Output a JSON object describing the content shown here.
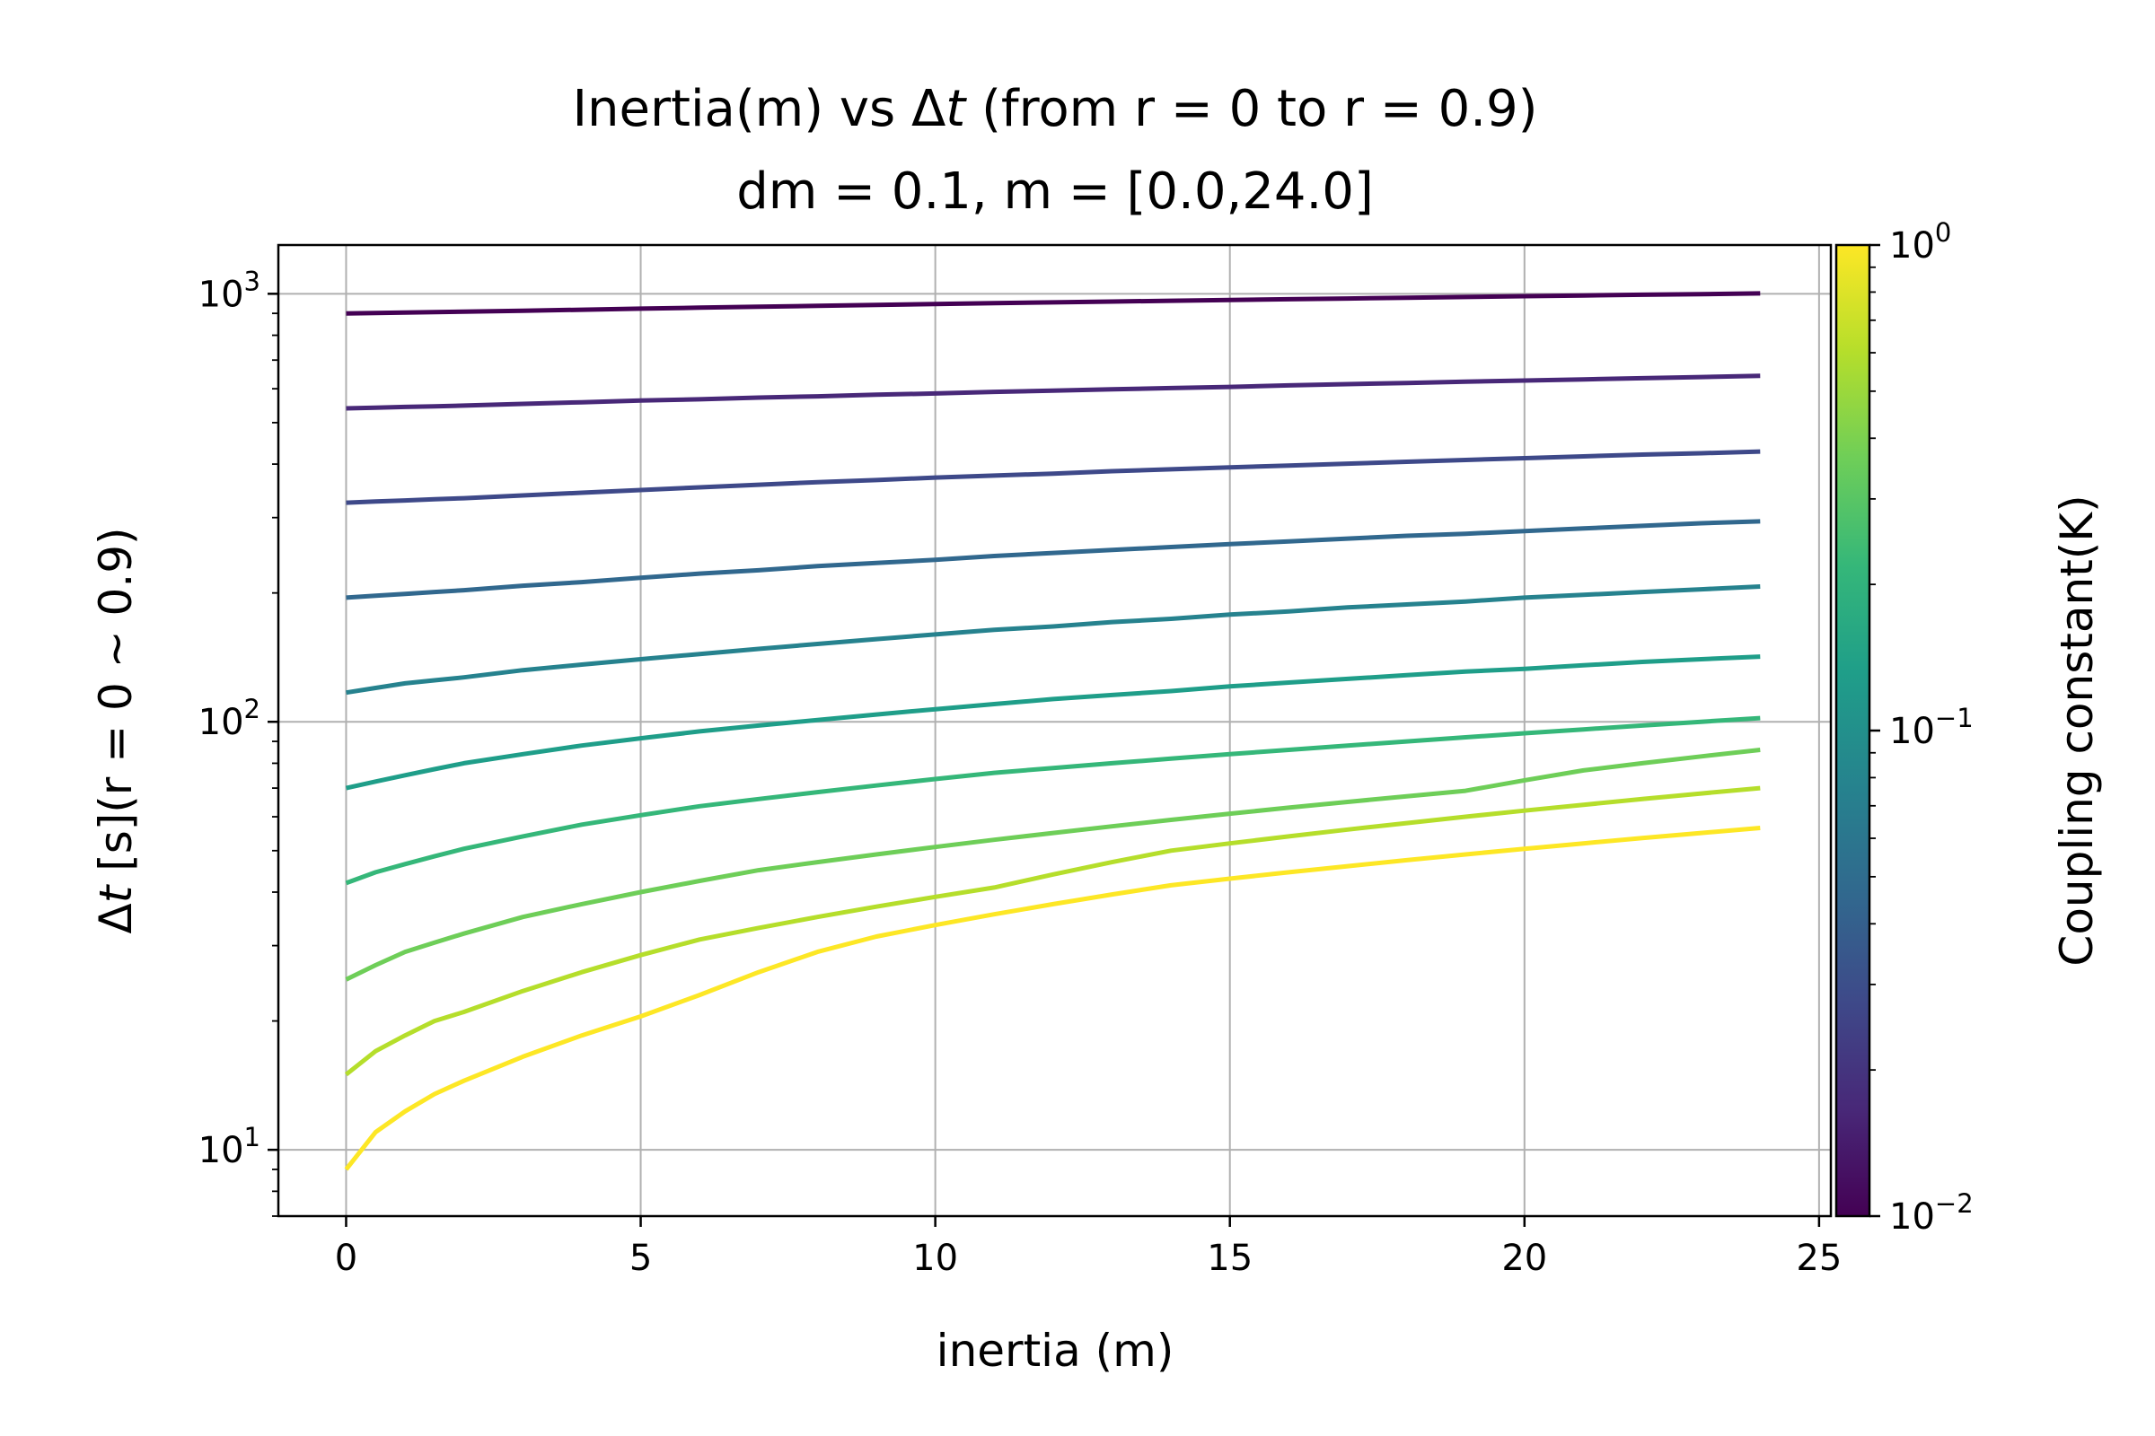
{
  "chart_data": {
    "type": "line",
    "title_line1_pre": "Inertia(m) vs ",
    "title_delta": "Δ",
    "title_t": "t",
    "title_line1_post": " (from r = 0 to r = 0.9)",
    "title_line2": "dm = 0.1, m = [0.0,24.0]",
    "xlabel": "inertia (m)",
    "ylabel_delta": "Δ",
    "ylabel_t": "t",
    "ylabel_rest": " [s](r = 0 ~ 0.9)",
    "xscale": "linear",
    "yscale": "log",
    "xlim": [
      -1.15,
      25.2
    ],
    "ylim": [
      7,
      1300
    ],
    "xticks": [
      0,
      5,
      10,
      15,
      20,
      25
    ],
    "xtick_labels": [
      "0",
      "5",
      "10",
      "15",
      "20",
      "25"
    ],
    "yticks": [
      10,
      100,
      1000
    ],
    "ytick_labels": [
      {
        "base": "10",
        "exp": "1"
      },
      {
        "base": "10",
        "exp": "2"
      },
      {
        "base": "10",
        "exp": "3"
      }
    ],
    "grid": true,
    "colorbar": {
      "label": "Coupling constant(K)",
      "colormap": "viridis",
      "scale": "log",
      "range": [
        0.01,
        1
      ],
      "ticks": [
        0.01,
        0.1,
        1
      ],
      "tick_labels": [
        {
          "base": "10",
          "exp": "−2"
        },
        {
          "base": "10",
          "exp": "−1"
        },
        {
          "base": "10",
          "exp": "0"
        }
      ],
      "colors": [
        "#440154",
        "#482878",
        "#3e4989",
        "#31688e",
        "#26828e",
        "#1f9e89",
        "#35b779",
        "#6ece58",
        "#b5de2b",
        "#fde725"
      ]
    },
    "x": [
      0,
      0.5,
      1,
      1.5,
      2,
      3,
      4,
      5,
      6,
      7,
      8,
      9,
      10,
      11,
      12,
      13,
      14,
      15,
      16,
      17,
      18,
      19,
      20,
      21,
      22,
      23,
      24
    ],
    "series": [
      {
        "K": 0.01,
        "color": "#440154",
        "values": [
          900,
          902,
          904,
          906,
          908,
          913,
          918,
          923,
          928,
          933,
          937,
          942,
          946,
          951,
          955,
          959,
          963,
          967,
          971,
          975,
          979,
          983,
          987,
          991,
          995,
          998,
          1002
        ]
      },
      {
        "K": 0.0167,
        "color": "#482878",
        "values": [
          540,
          542,
          544,
          546,
          548,
          553,
          558,
          563,
          567,
          572,
          576,
          581,
          585,
          590,
          594,
          598,
          602,
          606,
          611,
          615,
          619,
          623,
          627,
          631,
          635,
          639,
          643
        ]
      },
      {
        "K": 0.0278,
        "color": "#3e4989",
        "values": [
          325,
          327,
          329,
          331,
          333,
          338,
          343,
          348,
          353,
          358,
          363,
          367,
          372,
          376,
          380,
          385,
          389,
          393,
          397,
          401,
          405,
          409,
          413,
          417,
          421,
          424,
          428
        ]
      },
      {
        "K": 0.0464,
        "color": "#31688e",
        "values": [
          195,
          197,
          199,
          201,
          203,
          208,
          212,
          217,
          222,
          226,
          231,
          235,
          239,
          244,
          248,
          252,
          256,
          260,
          264,
          268,
          272,
          275,
          279,
          283,
          287,
          291,
          294
        ]
      },
      {
        "K": 0.0774,
        "color": "#26828e",
        "values": [
          117,
          120,
          123,
          125,
          127,
          132,
          136,
          140,
          144,
          148,
          152,
          156,
          160,
          164,
          167,
          171,
          174,
          178,
          181,
          185,
          188,
          191,
          195,
          198,
          201,
          204,
          207
        ]
      },
      {
        "K": 0.129,
        "color": "#1f9e89",
        "values": [
          70,
          72.5,
          75,
          77.5,
          80,
          84,
          88,
          91.5,
          95,
          98,
          101,
          104,
          107,
          110,
          113,
          115.5,
          118,
          121,
          123.5,
          126,
          128.5,
          131,
          133,
          135.5,
          138,
          140,
          142
        ]
      },
      {
        "K": 0.215,
        "color": "#35b779",
        "values": [
          42,
          44.5,
          46.5,
          48.5,
          50.5,
          54,
          57.5,
          60.5,
          63.5,
          66,
          68.5,
          71,
          73.5,
          76,
          78,
          80,
          82,
          84,
          86,
          88,
          90,
          92,
          94,
          96,
          98,
          100,
          102
        ]
      },
      {
        "K": 0.359,
        "color": "#6ece58",
        "values": [
          25,
          27,
          29,
          30.5,
          32,
          35,
          37.5,
          40,
          42.5,
          45,
          47,
          49,
          51,
          53,
          55,
          57,
          59,
          61,
          63,
          65,
          67,
          69,
          73,
          77,
          80,
          83,
          86
        ]
      },
      {
        "K": 0.599,
        "color": "#b5de2b",
        "values": [
          15,
          17,
          18.5,
          20,
          21,
          23.5,
          26,
          28.5,
          31,
          33,
          35,
          37,
          39,
          41,
          44,
          47,
          50,
          52,
          54,
          56,
          58,
          60,
          62,
          64,
          66,
          68,
          70
        ]
      },
      {
        "K": 1.0,
        "color": "#fde725",
        "values": [
          9,
          11,
          12.3,
          13.5,
          14.5,
          16.5,
          18.5,
          20.5,
          23,
          26,
          29,
          31.5,
          33.5,
          35.5,
          37.5,
          39.5,
          41.5,
          43,
          44.5,
          46,
          47.5,
          49,
          50.5,
          52,
          53.5,
          55,
          56.5
        ]
      }
    ]
  }
}
